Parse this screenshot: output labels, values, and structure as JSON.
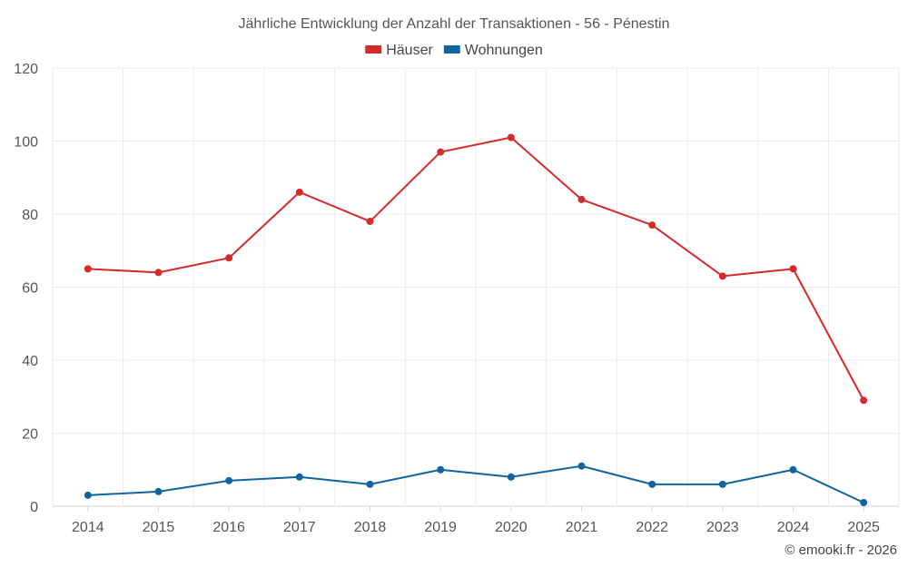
{
  "chart_data": {
    "type": "line",
    "title": "Jährliche Entwicklung der Anzahl der Transaktionen - 56 - Pénestin",
    "xlabel": "",
    "ylabel": "",
    "categories": [
      "2014",
      "2015",
      "2016",
      "2017",
      "2018",
      "2019",
      "2020",
      "2021",
      "2022",
      "2023",
      "2024",
      "2025"
    ],
    "ylim": [
      0,
      120
    ],
    "yticks": [
      0,
      20,
      40,
      60,
      80,
      100,
      120
    ],
    "grid": true,
    "legend_position": "top-center",
    "series": [
      {
        "name": "Häuser",
        "color": "#d42a2a",
        "values": [
          65,
          64,
          68,
          86,
          78,
          97,
          101,
          84,
          77,
          63,
          65,
          29
        ]
      },
      {
        "name": "Wohnungen",
        "color": "#0e65a0",
        "values": [
          3,
          4,
          7,
          8,
          6,
          10,
          8,
          11,
          6,
          6,
          10,
          1
        ]
      }
    ]
  },
  "credit": "© emooki.fr - 2026"
}
